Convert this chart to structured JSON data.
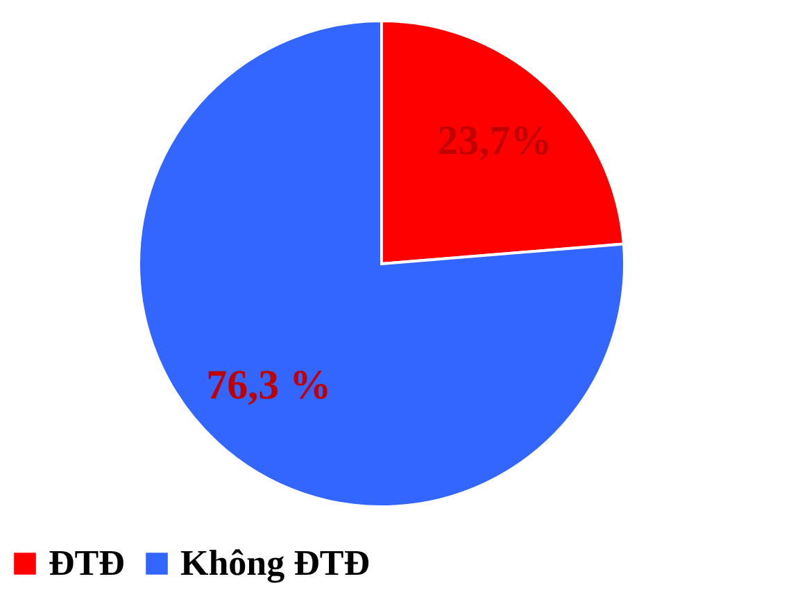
{
  "chart_data": {
    "type": "pie",
    "categories": [
      "ĐTĐ",
      "Không ĐTĐ"
    ],
    "values": [
      23.7,
      76.3
    ],
    "colors": [
      "#ff0000",
      "#3366ff"
    ],
    "value_labels": [
      "23,7%",
      "76,3 %"
    ],
    "legend": "bottom"
  }
}
